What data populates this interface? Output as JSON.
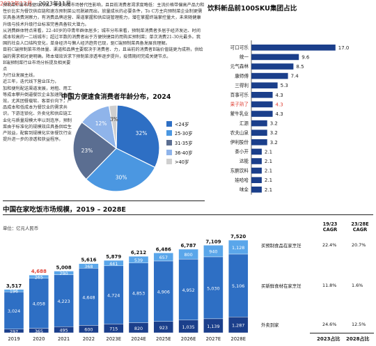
{
  "text_block": {
    "paragraphs": [
      "预制菜C端市场驱动力强。但受外卖市场替代性影响，且目前消费者渴求度略低：主流价格带偏高产品力和性价比实为餐饮供应链和速冻预制菜公司脱颖而出，放量成长的必要条件，To C方主向预制菜企业制更需实具备消费洞察力，有消费品牌运营、渠道掌握和供应链管理能力，潜在掌握终端掌控量大，未来随健康升级与技术升级行业标准完善具备较大潜力。",
      "从消费群体特点来看，22-40岁的中青年群体居多；城市分布来看，预制菜消费者多居于经济发达、时间成本较高的一二线城市；超过半数的消费者出于方便快捷目的而购买预制菜；单次消费21-30元最多。我国的社会人口结构变化，单身经济与懒人经济趋势已现，驱C端预制菜具备发展良理解。",
      "目前C端预制菜市场体量、渠道和品牌主要取决于消费者、力，且当前的消费者B端价值链更为成熟，供给端的需求相对更明确。降本增效诉求下预制菜渗透率逐步提升，疫情期间完成关键节点。"
    ],
    "extra_lines": [
      "B端预制菜行业市场分析提及相关要点",
      "为行业发展主线，",
      "近三年，迭代线下营业压力，",
      "加和便利配送渠道发展，地租、用工等成本攀升倒逼餐饮企业加速降本增效，尤其团餐载软、客单价向下，产品成本和低成本为餐饮业的需求共识，下游连锁化、外卖化和供应链工业化与质量规模大率以到连序，预制菜由于标准化的规模效应具备供给生产效益，配套到规模化实体餐饮行业提升进一步的渗透和获益程序。"
    ]
  },
  "pie_chart": {
    "title": "中国方便速食消费者年龄分布，2024",
    "chart_data": {
      "type": "pie",
      "title": "中国方便速食消费者年龄分布，2024",
      "slices": [
        {
          "label": "<24岁",
          "value": 32,
          "color": "#2e6fc4"
        },
        {
          "label": "25-30岁",
          "value": 30,
          "color": "#4b97e1"
        },
        {
          "label": "31-35岁",
          "value": 23,
          "color": "#5b6e91"
        },
        {
          "label": "36-40岁",
          "value": 12,
          "color": "#8fb4ea"
        },
        {
          "label": ">40岁",
          "value": 3,
          "color": "#cfcfcf"
        }
      ],
      "data_labels": [
        "32%",
        "30%",
        "23%",
        "12%",
        "3%"
      ]
    }
  },
  "hbar_chart": {
    "title": "饮料新品前100SKU集团占比",
    "subtitle_prefix": "2022年12月",
    "subtitle_rest": " – 2023年11月",
    "chart_data": {
      "type": "bar",
      "orientation": "horizontal",
      "title": "饮料新品前100SKU集团占比",
      "categories": [
        "可口可乐",
        "统一",
        "元气森林",
        "康师傅",
        "三得利",
        "百事可乐",
        "果子熟了",
        "蒙牛乳业",
        "汇源",
        "农夫山泉",
        "伊利股份",
        "茶小开",
        "达能",
        "东鹏饮料",
        "娃哈哈",
        "味全"
      ],
      "values": [
        17.0,
        9.6,
        8.5,
        7.4,
        5.3,
        4.3,
        4.3,
        4.3,
        3.2,
        3.2,
        3.2,
        2.1,
        2.1,
        2.1,
        2.1,
        2.1
      ],
      "value_labels": [
        "17.0",
        "9.6",
        "8.5",
        "7.4",
        "5.3",
        "4.3",
        "4.3",
        "4.3",
        "3.2",
        "3.2",
        "3.2",
        "2.1",
        "2.1",
        "2.1",
        "2.1",
        "2.1"
      ],
      "highlight_index": 6,
      "highlight_color": "#e0453a",
      "bar_color": "#1b3f8b",
      "xlim": [
        0,
        19
      ]
    }
  },
  "stacked_chart": {
    "title": "中国在家吃饭市场规模，2019 – 2028E",
    "unit": "单位：亿元人民币",
    "chart_data": {
      "type": "bar",
      "stacked": true,
      "categories": [
        "2019",
        "2020",
        "2021",
        "2022",
        "2023E",
        "2024E",
        "2025E",
        "2026E",
        "2027E",
        "2028E"
      ],
      "series": [
        {
          "name": "外卖到家",
          "values": [
            297,
            365,
            495,
            600,
            715,
            820,
            923,
            1035,
            1139,
            1287
          ],
          "color": "#1b3f8b"
        },
        {
          "name": "买新鲜食材在家烹饪",
          "values": [
            3024,
            4058,
            4223,
            4648,
            4724,
            4853,
            4906,
            4952,
            5030,
            5106
          ],
          "color": "#2e6fc4"
        },
        {
          "name": "买预制食品在家烹饪",
          "values": [
            196,
            265,
            290,
            368,
            441,
            539,
            657,
            800,
            940,
            1128
          ],
          "color": "#5aa6ea"
        }
      ],
      "totals": [
        "3,517",
        "4,688",
        "5,008",
        "5,616",
        "5,879",
        "6,212",
        "6,486",
        "6,787",
        "7,109",
        "7,520"
      ],
      "total_highlight_index": 1,
      "ylim": [
        0,
        8200
      ]
    },
    "cagr": {
      "col_headers": [
        "19/23\nCAGR",
        "23/28E\nCAGR"
      ],
      "rows": [
        {
          "label": "买预制食品在家烹饪",
          "a": "22.4%",
          "b": "20.7%"
        },
        {
          "label": "买新鲜食材在家烹饪",
          "a": "11.8%",
          "b": "1.6%"
        },
        {
          "label": "外卖到家",
          "a": "24.6%",
          "b": "12.5%"
        }
      ],
      "footer": [
        "2023占比",
        "2028占比"
      ]
    }
  }
}
